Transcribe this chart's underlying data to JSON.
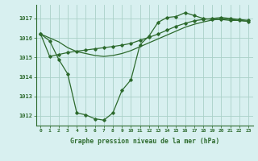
{
  "line1_x": [
    0,
    1,
    2,
    3,
    4,
    5,
    6,
    7,
    8,
    9,
    10,
    11,
    12,
    13,
    14,
    15,
    16,
    17,
    18,
    19,
    20,
    21,
    22,
    23
  ],
  "line1_y": [
    1016.2,
    1015.85,
    1014.9,
    1014.15,
    1012.15,
    1012.05,
    1011.85,
    1011.78,
    1012.15,
    1013.3,
    1013.85,
    1015.65,
    1016.1,
    1016.8,
    1017.05,
    1017.1,
    1017.3,
    1017.15,
    1017.0,
    1016.95,
    1016.95,
    1016.9,
    1016.9,
    1016.85
  ],
  "line2_x": [
    0,
    1,
    2,
    3,
    4,
    5,
    6,
    7,
    8,
    9,
    10,
    11,
    12,
    13,
    14,
    15,
    16,
    17,
    18,
    19,
    20,
    21,
    22,
    23
  ],
  "line2_y": [
    1016.2,
    1015.05,
    1015.15,
    1015.25,
    1015.32,
    1015.38,
    1015.44,
    1015.5,
    1015.56,
    1015.63,
    1015.72,
    1015.88,
    1016.03,
    1016.2,
    1016.4,
    1016.6,
    1016.75,
    1016.88,
    1016.95,
    1017.0,
    1017.05,
    1017.0,
    1016.95,
    1016.9
  ],
  "line3_x": [
    0,
    2,
    3,
    4,
    5,
    6,
    7,
    8,
    9,
    10,
    11,
    12,
    13,
    14,
    15,
    16,
    17,
    18,
    19,
    20,
    21,
    22,
    23
  ],
  "line3_y": [
    1016.2,
    1015.8,
    1015.5,
    1015.3,
    1015.2,
    1015.1,
    1015.05,
    1015.1,
    1015.2,
    1015.35,
    1015.55,
    1015.75,
    1015.95,
    1016.15,
    1016.35,
    1016.55,
    1016.7,
    1016.82,
    1016.92,
    1016.98,
    1016.95,
    1016.9,
    1016.85
  ],
  "line_color": "#2d6a2d",
  "bg_color": "#d8f0f0",
  "grid_color": "#aad0c8",
  "xlabel": "Graphe pression niveau de la mer (hPa)",
  "ylim": [
    1011.5,
    1017.7
  ],
  "yticks": [
    1012,
    1013,
    1014,
    1015,
    1016,
    1017
  ],
  "xticks": [
    0,
    1,
    2,
    3,
    4,
    5,
    6,
    7,
    8,
    9,
    10,
    11,
    12,
    13,
    14,
    15,
    16,
    17,
    18,
    19,
    20,
    21,
    22,
    23
  ]
}
